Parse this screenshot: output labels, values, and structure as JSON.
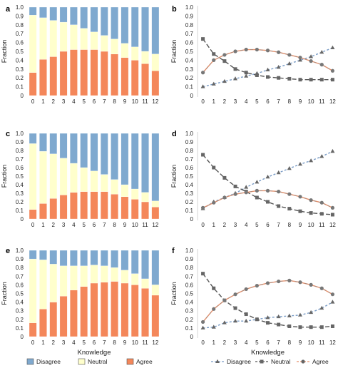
{
  "colors": {
    "disagree_bar": "#7fa9cf",
    "neutral_bar": "#ffffcc",
    "agree_bar": "#f4875a",
    "disagree_line": "#7a9cc6",
    "neutral_line": "#555555",
    "agree_line": "#e8906a",
    "marker_disagree": "#666666",
    "marker_neutral": "#666666",
    "marker_agree": "#777777"
  },
  "legends": {
    "bar": [
      "Disagree",
      "Neutral",
      "Agree"
    ],
    "line": [
      "Disagree",
      "Neutral",
      "Agree"
    ]
  },
  "chart_data": [
    {
      "panel": "a",
      "type": "bar",
      "stacked": true,
      "categories": [
        "0",
        "1",
        "2",
        "3",
        "4",
        "5",
        "6",
        "7",
        "8",
        "9",
        "10",
        "11",
        "12"
      ],
      "series": [
        {
          "name": "Agree",
          "values": [
            0.26,
            0.41,
            0.44,
            0.5,
            0.52,
            0.52,
            0.52,
            0.5,
            0.47,
            0.43,
            0.4,
            0.36,
            0.28
          ]
        },
        {
          "name": "Neutral",
          "values": [
            0.65,
            0.47,
            0.41,
            0.33,
            0.28,
            0.24,
            0.2,
            0.18,
            0.17,
            0.16,
            0.15,
            0.14,
            0.19
          ]
        },
        {
          "name": "Disagree",
          "values": [
            0.09,
            0.12,
            0.15,
            0.17,
            0.2,
            0.24,
            0.28,
            0.32,
            0.36,
            0.41,
            0.45,
            0.5,
            0.53
          ]
        }
      ],
      "xlabel": "",
      "ylabel": "Fraction",
      "ylim": [
        0,
        1
      ],
      "show_xlabel": false
    },
    {
      "panel": "b",
      "type": "line",
      "x": [
        0,
        1,
        2,
        3,
        4,
        5,
        6,
        7,
        8,
        9,
        10,
        11,
        12
      ],
      "series": [
        {
          "name": "Disagree",
          "marker": "triangle",
          "values": [
            0.1,
            0.13,
            0.16,
            0.19,
            0.22,
            0.25,
            0.29,
            0.32,
            0.36,
            0.4,
            0.44,
            0.49,
            0.54
          ]
        },
        {
          "name": "Neutral",
          "marker": "square",
          "values": [
            0.64,
            0.47,
            0.39,
            0.3,
            0.26,
            0.23,
            0.21,
            0.2,
            0.19,
            0.18,
            0.18,
            0.18,
            0.18
          ]
        },
        {
          "name": "Agree",
          "marker": "circle",
          "values": [
            0.26,
            0.4,
            0.46,
            0.5,
            0.52,
            0.52,
            0.51,
            0.49,
            0.46,
            0.43,
            0.39,
            0.35,
            0.28
          ]
        }
      ],
      "xlabel": "",
      "ylabel": "Fraction",
      "ylim": [
        0,
        1
      ],
      "show_xlabel": false
    },
    {
      "panel": "c",
      "type": "bar",
      "stacked": true,
      "categories": [
        "0",
        "1",
        "2",
        "3",
        "4",
        "5",
        "6",
        "7",
        "8",
        "9",
        "10",
        "11",
        "12"
      ],
      "series": [
        {
          "name": "Agree",
          "values": [
            0.11,
            0.18,
            0.24,
            0.28,
            0.31,
            0.32,
            0.32,
            0.32,
            0.29,
            0.26,
            0.23,
            0.2,
            0.14
          ]
        },
        {
          "name": "Neutral",
          "values": [
            0.77,
            0.61,
            0.52,
            0.43,
            0.34,
            0.28,
            0.24,
            0.2,
            0.17,
            0.14,
            0.12,
            0.11,
            0.07
          ]
        },
        {
          "name": "Disagree",
          "values": [
            0.12,
            0.21,
            0.24,
            0.29,
            0.35,
            0.4,
            0.44,
            0.48,
            0.54,
            0.6,
            0.65,
            0.69,
            0.79
          ]
        }
      ],
      "xlabel": "",
      "ylabel": "Fraction",
      "ylim": [
        0,
        1
      ],
      "show_xlabel": false
    },
    {
      "panel": "d",
      "type": "line",
      "x": [
        0,
        1,
        2,
        3,
        4,
        5,
        6,
        7,
        8,
        9,
        10,
        11,
        12
      ],
      "series": [
        {
          "name": "Disagree",
          "marker": "triangle",
          "values": [
            0.12,
            0.2,
            0.25,
            0.3,
            0.37,
            0.43,
            0.49,
            0.54,
            0.59,
            0.64,
            0.68,
            0.73,
            0.79
          ]
        },
        {
          "name": "Neutral",
          "marker": "square",
          "values": [
            0.75,
            0.6,
            0.48,
            0.38,
            0.32,
            0.25,
            0.2,
            0.15,
            0.12,
            0.09,
            0.07,
            0.06,
            0.05
          ]
        },
        {
          "name": "Agree",
          "marker": "circle",
          "values": [
            0.13,
            0.19,
            0.25,
            0.29,
            0.31,
            0.33,
            0.33,
            0.32,
            0.29,
            0.26,
            0.22,
            0.19,
            0.13
          ]
        }
      ],
      "xlabel": "",
      "ylabel": "Fraction",
      "ylim": [
        0,
        1
      ],
      "show_xlabel": false
    },
    {
      "panel": "e",
      "type": "bar",
      "stacked": true,
      "categories": [
        "0",
        "1",
        "2",
        "3",
        "4",
        "5",
        "6",
        "7",
        "8",
        "9",
        "10",
        "11",
        "12"
      ],
      "series": [
        {
          "name": "Agree",
          "values": [
            0.16,
            0.32,
            0.4,
            0.47,
            0.54,
            0.58,
            0.62,
            0.63,
            0.64,
            0.62,
            0.6,
            0.56,
            0.48
          ]
        },
        {
          "name": "Neutral",
          "values": [
            0.74,
            0.57,
            0.44,
            0.35,
            0.28,
            0.24,
            0.21,
            0.19,
            0.16,
            0.15,
            0.13,
            0.11,
            0.12
          ]
        },
        {
          "name": "Disagree",
          "values": [
            0.1,
            0.11,
            0.16,
            0.18,
            0.18,
            0.18,
            0.17,
            0.18,
            0.2,
            0.23,
            0.27,
            0.33,
            0.4
          ]
        }
      ],
      "xlabel": "Knowledge",
      "ylabel": "Fraction",
      "ylim": [
        0,
        1
      ],
      "show_xlabel": true
    },
    {
      "panel": "f",
      "type": "line",
      "x": [
        0,
        1,
        2,
        3,
        4,
        5,
        6,
        7,
        8,
        9,
        10,
        11,
        12
      ],
      "series": [
        {
          "name": "Disagree",
          "marker": "triangle",
          "values": [
            0.1,
            0.11,
            0.16,
            0.18,
            0.18,
            0.2,
            0.22,
            0.23,
            0.24,
            0.25,
            0.28,
            0.33,
            0.4
          ]
        },
        {
          "name": "Neutral",
          "marker": "square",
          "values": [
            0.73,
            0.56,
            0.42,
            0.33,
            0.26,
            0.2,
            0.16,
            0.14,
            0.12,
            0.11,
            0.11,
            0.11,
            0.12
          ]
        },
        {
          "name": "Agree",
          "marker": "circle",
          "values": [
            0.17,
            0.32,
            0.42,
            0.49,
            0.55,
            0.59,
            0.62,
            0.64,
            0.65,
            0.63,
            0.6,
            0.56,
            0.49
          ]
        }
      ],
      "xlabel": "Knowledge",
      "ylabel": "Fraction",
      "ylim": [
        0,
        1
      ],
      "show_xlabel": true
    }
  ]
}
